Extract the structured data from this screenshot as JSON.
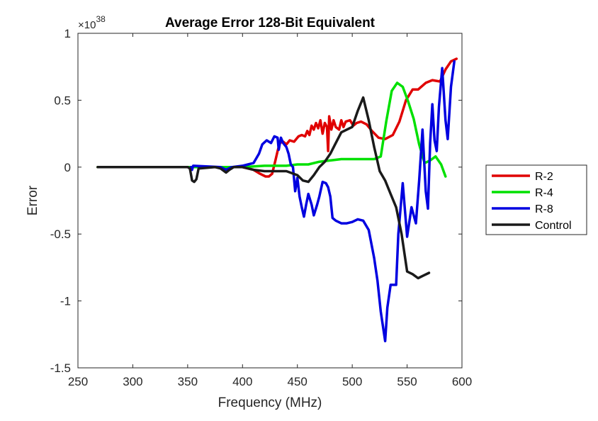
{
  "chart_data": {
    "type": "line",
    "title": "Average Error 128-Bit Equivalent",
    "xlabel": "Frequency (MHz)",
    "ylabel": "Error",
    "xlim": [
      250,
      600
    ],
    "ylim": [
      -1.5,
      1
    ],
    "xticks": [
      "250",
      "300",
      "350",
      "400",
      "450",
      "500",
      "550",
      "600"
    ],
    "yticks": [
      "-1.5",
      "-1",
      "-0.5",
      "0",
      "0.5",
      "1"
    ],
    "y_multiplier_base": "×10",
    "y_multiplier_exponent": "38",
    "legend_position": "outside-right",
    "grid": false,
    "series": [
      {
        "name": "R-2",
        "color": "#e00000",
        "points": [
          [
            268,
            0
          ],
          [
            300,
            0
          ],
          [
            350,
            0
          ],
          [
            400,
            0
          ],
          [
            410,
            -0.02
          ],
          [
            416,
            -0.05
          ],
          [
            421,
            -0.07
          ],
          [
            424,
            -0.07
          ],
          [
            427,
            -0.05
          ],
          [
            430,
            0.05
          ],
          [
            432,
            0.12
          ],
          [
            434,
            0.18
          ],
          [
            437,
            0.19
          ],
          [
            440,
            0.17
          ],
          [
            443,
            0.2
          ],
          [
            447,
            0.19
          ],
          [
            451,
            0.23
          ],
          [
            454,
            0.24
          ],
          [
            457,
            0.23
          ],
          [
            459,
            0.27
          ],
          [
            461,
            0.24
          ],
          [
            463,
            0.31
          ],
          [
            465,
            0.28
          ],
          [
            467,
            0.33
          ],
          [
            469,
            0.29
          ],
          [
            471,
            0.35
          ],
          [
            473,
            0.25
          ],
          [
            475,
            0.33
          ],
          [
            477,
            0.3
          ],
          [
            478,
            0.12
          ],
          [
            479,
            0.38
          ],
          [
            481,
            0.28
          ],
          [
            483,
            0.35
          ],
          [
            485,
            0.3
          ],
          [
            488,
            0.28
          ],
          [
            490,
            0.35
          ],
          [
            492,
            0.3
          ],
          [
            494,
            0.34
          ],
          [
            498,
            0.35
          ],
          [
            501,
            0.31
          ],
          [
            504,
            0.33
          ],
          [
            508,
            0.34
          ],
          [
            513,
            0.32
          ],
          [
            518,
            0.27
          ],
          [
            524,
            0.22
          ],
          [
            530,
            0.21
          ],
          [
            537,
            0.24
          ],
          [
            543,
            0.34
          ],
          [
            549,
            0.5
          ],
          [
            555,
            0.58
          ],
          [
            560,
            0.58
          ],
          [
            567,
            0.63
          ],
          [
            573,
            0.65
          ],
          [
            580,
            0.64
          ],
          [
            585,
            0.73
          ],
          [
            590,
            0.79
          ],
          [
            595,
            0.81
          ]
        ]
      },
      {
        "name": "R-4",
        "color": "#00e000",
        "points": [
          [
            268,
            0
          ],
          [
            300,
            0
          ],
          [
            350,
            0
          ],
          [
            400,
            0
          ],
          [
            420,
            0.01
          ],
          [
            440,
            0.01
          ],
          [
            450,
            0.02
          ],
          [
            460,
            0.02
          ],
          [
            470,
            0.04
          ],
          [
            480,
            0.05
          ],
          [
            490,
            0.06
          ],
          [
            500,
            0.06
          ],
          [
            510,
            0.06
          ],
          [
            520,
            0.06
          ],
          [
            526,
            0.08
          ],
          [
            531,
            0.34
          ],
          [
            536,
            0.57
          ],
          [
            541,
            0.63
          ],
          [
            546,
            0.6
          ],
          [
            551,
            0.49
          ],
          [
            556,
            0.36
          ],
          [
            561,
            0.17
          ],
          [
            566,
            0.03
          ],
          [
            571,
            0.05
          ],
          [
            576,
            0.08
          ],
          [
            581,
            0.02
          ],
          [
            585,
            -0.07
          ]
        ]
      },
      {
        "name": "R-8",
        "color": "#0000e0",
        "points": [
          [
            353,
            0
          ],
          [
            354,
            -0.02
          ],
          [
            355,
            0.01
          ],
          [
            380,
            0
          ],
          [
            385,
            -0.02
          ],
          [
            390,
            0
          ],
          [
            400,
            0.01
          ],
          [
            405,
            0.02
          ],
          [
            410,
            0.03
          ],
          [
            415,
            0.1
          ],
          [
            418,
            0.17
          ],
          [
            422,
            0.2
          ],
          [
            426,
            0.18
          ],
          [
            429,
            0.23
          ],
          [
            432,
            0.22
          ],
          [
            433,
            0.13
          ],
          [
            435,
            0.22
          ],
          [
            437,
            0.18
          ],
          [
            440,
            0.15
          ],
          [
            442,
            0.1
          ],
          [
            444,
            0.02
          ],
          [
            446,
            0
          ],
          [
            448,
            -0.18
          ],
          [
            450,
            -0.08
          ],
          [
            452,
            -0.22
          ],
          [
            454,
            -0.3
          ],
          [
            456,
            -0.37
          ],
          [
            458,
            -0.28
          ],
          [
            460,
            -0.2
          ],
          [
            463,
            -0.28
          ],
          [
            465,
            -0.36
          ],
          [
            468,
            -0.28
          ],
          [
            470,
            -0.22
          ],
          [
            473,
            -0.11
          ],
          [
            476,
            -0.12
          ],
          [
            478,
            -0.15
          ],
          [
            480,
            -0.22
          ],
          [
            482,
            -0.38
          ],
          [
            485,
            -0.4
          ],
          [
            490,
            -0.42
          ],
          [
            495,
            -0.42
          ],
          [
            500,
            -0.41
          ],
          [
            505,
            -0.39
          ],
          [
            510,
            -0.4
          ],
          [
            515,
            -0.47
          ],
          [
            520,
            -0.68
          ],
          [
            523,
            -0.85
          ],
          [
            526,
            -1.08
          ],
          [
            530,
            -1.3
          ],
          [
            532,
            -1.05
          ],
          [
            535,
            -0.88
          ],
          [
            540,
            -0.88
          ],
          [
            542,
            -0.5
          ],
          [
            546,
            -0.12
          ],
          [
            550,
            -0.52
          ],
          [
            554,
            -0.3
          ],
          [
            558,
            -0.42
          ],
          [
            561,
            -0.1
          ],
          [
            564,
            0.28
          ],
          [
            567,
            -0.18
          ],
          [
            569,
            -0.31
          ],
          [
            571,
            0.18
          ],
          [
            573,
            0.47
          ],
          [
            575,
            0.2
          ],
          [
            577,
            0.12
          ],
          [
            579,
            0.45
          ],
          [
            582,
            0.74
          ],
          [
            585,
            0.35
          ],
          [
            587,
            0.21
          ],
          [
            590,
            0.6
          ],
          [
            593,
            0.79
          ]
        ]
      },
      {
        "name": "Control",
        "color": "#1a1a1a",
        "points": [
          [
            268,
            0
          ],
          [
            300,
            0
          ],
          [
            350,
            0
          ],
          [
            352,
            -0.01
          ],
          [
            354,
            -0.1
          ],
          [
            356,
            -0.11
          ],
          [
            358,
            -0.09
          ],
          [
            360,
            -0.01
          ],
          [
            375,
            0
          ],
          [
            380,
            -0.01
          ],
          [
            385,
            -0.04
          ],
          [
            388,
            -0.02
          ],
          [
            392,
            0
          ],
          [
            400,
            0
          ],
          [
            405,
            -0.01
          ],
          [
            410,
            -0.02
          ],
          [
            420,
            -0.03
          ],
          [
            430,
            -0.03
          ],
          [
            440,
            -0.03
          ],
          [
            450,
            -0.06
          ],
          [
            455,
            -0.1
          ],
          [
            460,
            -0.11
          ],
          [
            465,
            -0.06
          ],
          [
            470,
            0
          ],
          [
            475,
            0.04
          ],
          [
            480,
            0.1
          ],
          [
            485,
            0.18
          ],
          [
            490,
            0.26
          ],
          [
            495,
            0.28
          ],
          [
            500,
            0.3
          ],
          [
            505,
            0.42
          ],
          [
            510,
            0.52
          ],
          [
            515,
            0.35
          ],
          [
            520,
            0.15
          ],
          [
            525,
            -0.03
          ],
          [
            530,
            -0.1
          ],
          [
            535,
            -0.2
          ],
          [
            540,
            -0.3
          ],
          [
            545,
            -0.5
          ],
          [
            550,
            -0.78
          ],
          [
            555,
            -0.8
          ],
          [
            560,
            -0.83
          ],
          [
            565,
            -0.81
          ],
          [
            570,
            -0.79
          ]
        ]
      }
    ]
  }
}
